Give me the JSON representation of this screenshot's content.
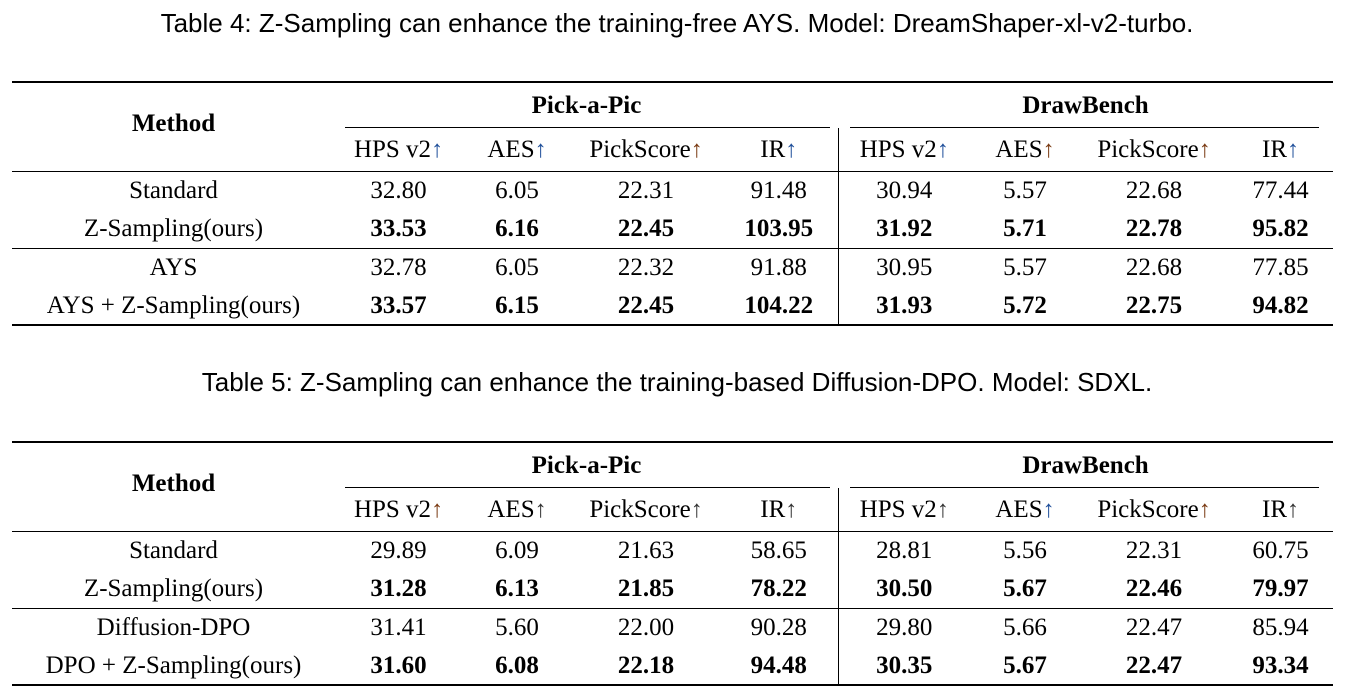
{
  "tables": [
    {
      "caption": "Table 4: Z-Sampling can enhance the training-free AYS. Model: DreamShaper-xl-v2-turbo.",
      "method_header": "Method",
      "groups": [
        "Pick-a-Pic",
        "DrawBench"
      ],
      "metrics": [
        {
          "label": "HPS v2",
          "arrow": "↑",
          "arrow_color": "#1f4f9a"
        },
        {
          "label": "AES",
          "arrow": "↑",
          "arrow_color": "#1f4f9a"
        },
        {
          "label": "PickScore",
          "arrow": "↑",
          "arrow_color": "#7a3a12"
        },
        {
          "label": "IR",
          "arrow": "↑",
          "arrow_color": "#1f4f9a"
        },
        {
          "label": "HPS v2",
          "arrow": "↑",
          "arrow_color": "#1f4f9a"
        },
        {
          "label": "AES",
          "arrow": "↑",
          "arrow_color": "#7a3a12"
        },
        {
          "label": "PickScore",
          "arrow": "↑",
          "arrow_color": "#7a3a12"
        },
        {
          "label": "IR",
          "arrow": "↑",
          "arrow_color": "#1f4f9a"
        }
      ],
      "rows": [
        {
          "method": "Standard",
          "bold": false,
          "values": [
            "32.80",
            "6.05",
            "22.31",
            "91.48",
            "30.94",
            "5.57",
            "22.68",
            "77.44"
          ]
        },
        {
          "method": "Z-Sampling(ours)",
          "bold": true,
          "values": [
            "33.53",
            "6.16",
            "22.45",
            "103.95",
            "31.92",
            "5.71",
            "22.78",
            "95.82"
          ]
        },
        {
          "method": "AYS",
          "bold": false,
          "values": [
            "32.78",
            "6.05",
            "22.32",
            "91.88",
            "30.95",
            "5.57",
            "22.68",
            "77.85"
          ]
        },
        {
          "method": "AYS + Z-Sampling(ours)",
          "bold": true,
          "values": [
            "33.57",
            "6.15",
            "22.45",
            "104.22",
            "31.93",
            "5.72",
            "22.75",
            "94.82"
          ]
        }
      ]
    },
    {
      "caption": "Table 5: Z-Sampling can enhance the training-based Diffusion-DPO. Model: SDXL.",
      "method_header": "Method",
      "groups": [
        "Pick-a-Pic",
        "DrawBench"
      ],
      "metrics": [
        {
          "label": "HPS v2",
          "arrow": "↑",
          "arrow_color": "#7a3a12"
        },
        {
          "label": "AES",
          "arrow": "↑",
          "arrow_color": "#333333"
        },
        {
          "label": "PickScore",
          "arrow": "↑",
          "arrow_color": "#333333"
        },
        {
          "label": "IR",
          "arrow": "↑",
          "arrow_color": "#333333"
        },
        {
          "label": "HPS v2",
          "arrow": "↑",
          "arrow_color": "#333333"
        },
        {
          "label": "AES",
          "arrow": "↑",
          "arrow_color": "#1f4f9a"
        },
        {
          "label": "PickScore",
          "arrow": "↑",
          "arrow_color": "#7a3a12"
        },
        {
          "label": "IR",
          "arrow": "↑",
          "arrow_color": "#333333"
        }
      ],
      "rows": [
        {
          "method": "Standard",
          "bold": false,
          "values": [
            "29.89",
            "6.09",
            "21.63",
            "58.65",
            "28.81",
            "5.56",
            "22.31",
            "60.75"
          ]
        },
        {
          "method": "Z-Sampling(ours)",
          "bold": true,
          "values": [
            "31.28",
            "6.13",
            "21.85",
            "78.22",
            "30.50",
            "5.67",
            "22.46",
            "79.97"
          ]
        },
        {
          "method": "Diffusion-DPO",
          "bold": false,
          "values": [
            "31.41",
            "5.60",
            "22.00",
            "90.28",
            "29.80",
            "5.66",
            "22.47",
            "85.94"
          ]
        },
        {
          "method": "DPO + Z-Sampling(ours)",
          "bold": true,
          "values": [
            "31.60",
            "6.08",
            "22.18",
            "94.48",
            "30.35",
            "5.67",
            "22.47",
            "93.34"
          ]
        }
      ]
    }
  ]
}
